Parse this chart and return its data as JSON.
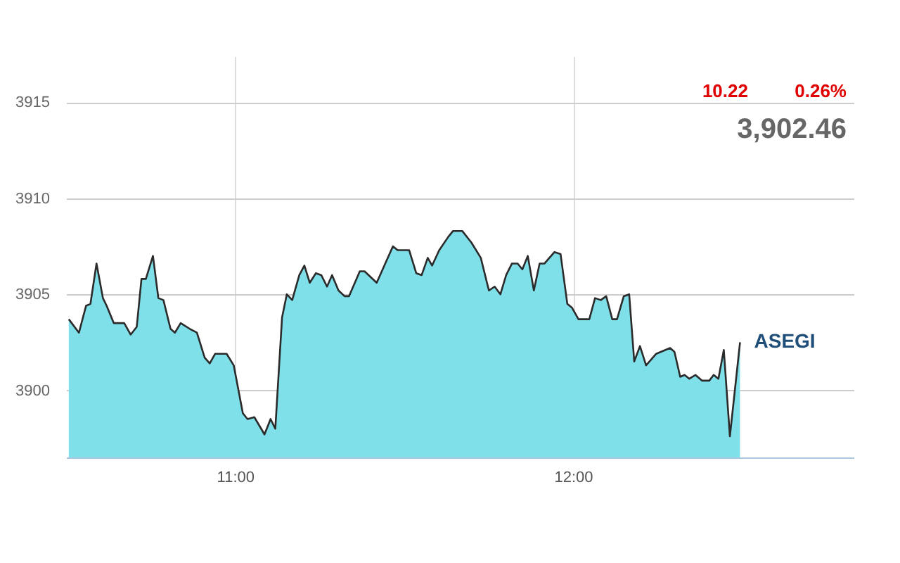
{
  "chart_data": {
    "type": "area",
    "annotations": [
      "10.22",
      "0.26%",
      "3,902.46"
    ],
    "xlim": [
      10.5,
      12.83
    ],
    "xticks": [
      {
        "value": 11,
        "label": "11:00"
      },
      {
        "value": 12,
        "label": "12:00"
      }
    ],
    "ylim": [
      3896.5,
      3917.4
    ],
    "yticks": [
      3900,
      3905,
      3910,
      3915
    ],
    "grid": true,
    "series": [
      {
        "name": "ASEGI",
        "color": "#80e0ea",
        "x": [
          10.508,
          10.538,
          10.559,
          10.572,
          10.59,
          10.609,
          10.62,
          10.641,
          10.672,
          10.691,
          10.709,
          10.723,
          10.736,
          10.757,
          10.773,
          10.788,
          10.809,
          10.822,
          10.839,
          10.866,
          10.887,
          10.91,
          10.925,
          10.941,
          10.975,
          10.996,
          11.023,
          11.037,
          11.057,
          11.087,
          11.105,
          11.119,
          11.139,
          11.153,
          11.169,
          11.19,
          11.205,
          11.221,
          11.239,
          11.255,
          11.272,
          11.287,
          11.306,
          11.324,
          11.337,
          11.369,
          11.383,
          11.419,
          11.467,
          11.481,
          11.515,
          11.536,
          11.552,
          11.57,
          11.583,
          11.604,
          11.631,
          11.645,
          11.672,
          11.699,
          11.727,
          11.751,
          11.768,
          11.785,
          11.802,
          11.819,
          11.836,
          11.85,
          11.866,
          11.884,
          11.901,
          11.915,
          11.945,
          11.963,
          11.983,
          11.997,
          12.016,
          12.048,
          12.065,
          12.082,
          12.098,
          12.116,
          12.13,
          12.15,
          12.166,
          12.181,
          12.198,
          12.216,
          12.246,
          12.287,
          12.3,
          12.317,
          12.33,
          12.344,
          12.362,
          12.382,
          12.403,
          12.416,
          12.43,
          12.446,
          12.464,
          12.494
        ],
        "values": [
          3903.7,
          3903.0,
          3904.4,
          3904.5,
          3906.6,
          3904.8,
          3904.4,
          3903.5,
          3903.5,
          3902.9,
          3903.3,
          3905.8,
          3905.8,
          3907.0,
          3904.8,
          3904.7,
          3903.2,
          3903.0,
          3903.5,
          3903.2,
          3903.0,
          3901.7,
          3901.4,
          3901.9,
          3901.9,
          3901.3,
          3898.8,
          3898.5,
          3898.6,
          3897.7,
          3898.5,
          3898.0,
          3903.8,
          3905.0,
          3904.7,
          3906.0,
          3906.5,
          3905.6,
          3906.1,
          3906.0,
          3905.4,
          3906.0,
          3905.2,
          3904.9,
          3904.9,
          3906.2,
          3906.2,
          3905.6,
          3907.5,
          3907.3,
          3907.3,
          3906.1,
          3906.0,
          3906.9,
          3906.5,
          3907.3,
          3908.0,
          3908.3,
          3908.3,
          3907.7,
          3906.9,
          3905.2,
          3905.4,
          3905.0,
          3906.0,
          3906.6,
          3906.6,
          3906.3,
          3907.0,
          3905.2,
          3906.6,
          3906.6,
          3907.2,
          3907.1,
          3904.5,
          3904.3,
          3903.7,
          3903.7,
          3904.8,
          3904.7,
          3904.9,
          3903.7,
          3903.7,
          3904.9,
          3905.0,
          3901.5,
          3902.3,
          3901.3,
          3901.9,
          3902.2,
          3902.0,
          3900.7,
          3900.8,
          3900.6,
          3900.8,
          3900.5,
          3900.5,
          3900.8,
          3900.6,
          3902.1,
          3897.6,
          3902.5
        ]
      }
    ]
  }
}
